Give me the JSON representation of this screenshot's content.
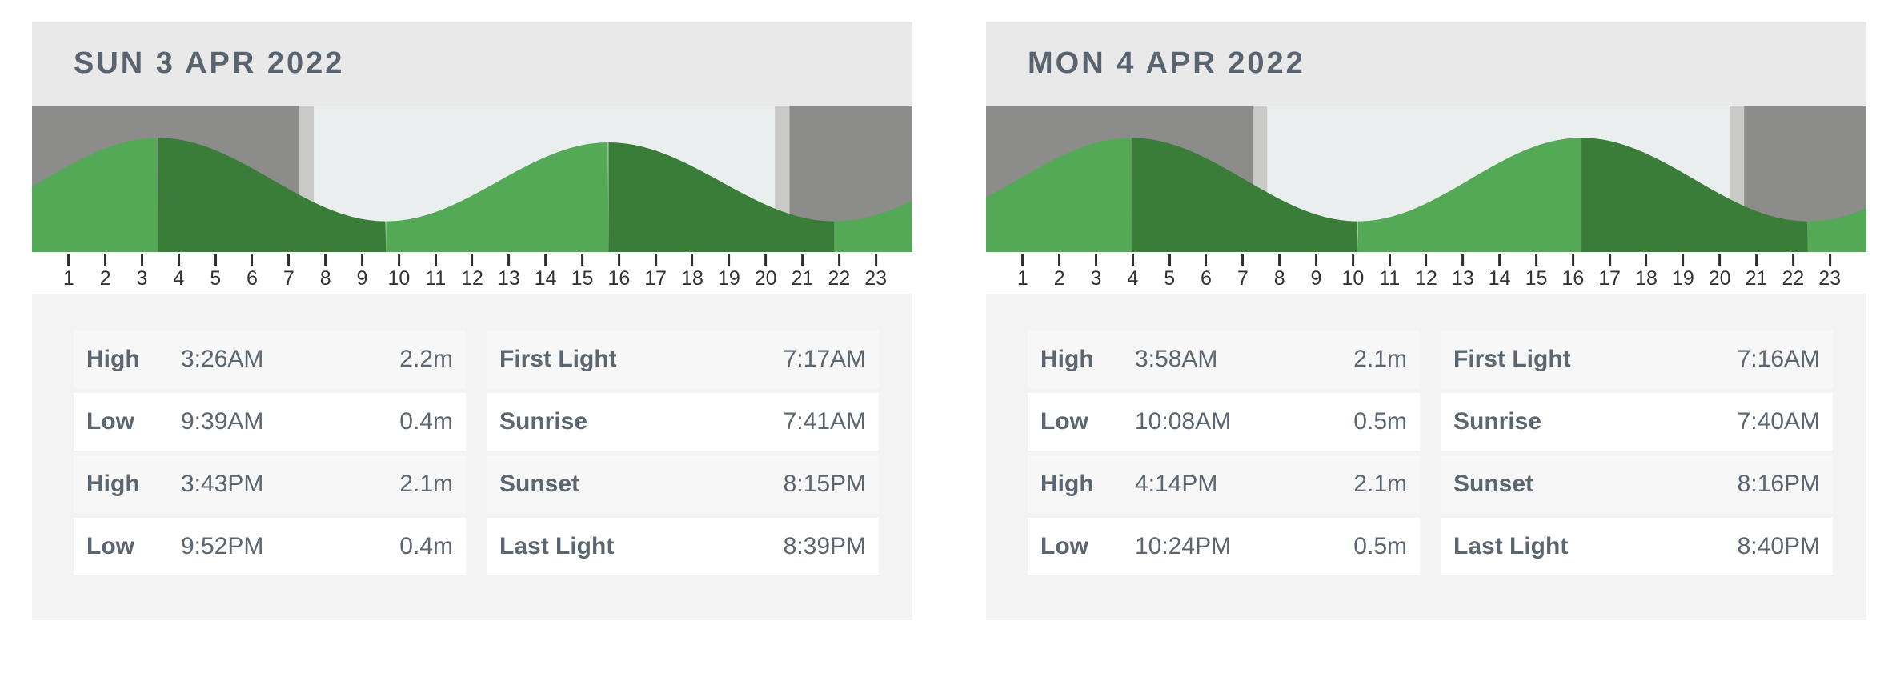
{
  "cards": [
    {
      "title": "SUN 3 APR 2022",
      "chart_data": {
        "type": "area",
        "x_unit": "hour-of-day",
        "x_range": [
          0,
          24
        ],
        "tick_labels": [
          "1",
          "2",
          "3",
          "4",
          "5",
          "6",
          "7",
          "8",
          "9",
          "10",
          "11",
          "12",
          "13",
          "14",
          "15",
          "16",
          "17",
          "18",
          "19",
          "20",
          "21",
          "22",
          "23"
        ],
        "extremes": [
          {
            "type": "High",
            "time": "3:26AM",
            "height_m": 2.2
          },
          {
            "type": "Low",
            "time": "9:39AM",
            "height_m": 0.4
          },
          {
            "type": "High",
            "time": "3:43PM",
            "height_m": 2.1
          },
          {
            "type": "Low",
            "time": "9:52PM",
            "height_m": 0.4
          }
        ],
        "daylight": {
          "first_light": "7:17AM",
          "sunrise": "7:41AM",
          "sunset": "8:15PM",
          "last_light": "8:39PM"
        },
        "legend": "rising tide = light green, falling tide = dark green, night = dark gray, twilight = light gray band, daytime = pale background"
      },
      "tide_table": [
        {
          "label": "High",
          "time": "3:26AM",
          "height": "2.2m"
        },
        {
          "label": "Low",
          "time": "9:39AM",
          "height": "0.4m"
        },
        {
          "label": "High",
          "time": "3:43PM",
          "height": "2.1m"
        },
        {
          "label": "Low",
          "time": "9:52PM",
          "height": "0.4m"
        }
      ],
      "light_table": [
        {
          "label": "First Light",
          "time": "7:17AM"
        },
        {
          "label": "Sunrise",
          "time": "7:41AM"
        },
        {
          "label": "Sunset",
          "time": "8:15PM"
        },
        {
          "label": "Last Light",
          "time": "8:39PM"
        }
      ]
    },
    {
      "title": "MON 4 APR 2022",
      "chart_data": {
        "type": "area",
        "x_unit": "hour-of-day",
        "x_range": [
          0,
          24
        ],
        "tick_labels": [
          "1",
          "2",
          "3",
          "4",
          "5",
          "6",
          "7",
          "8",
          "9",
          "10",
          "11",
          "12",
          "13",
          "14",
          "15",
          "16",
          "17",
          "18",
          "19",
          "20",
          "21",
          "22",
          "23"
        ],
        "extremes": [
          {
            "type": "High",
            "time": "3:58AM",
            "height_m": 2.1
          },
          {
            "type": "Low",
            "time": "10:08AM",
            "height_m": 0.5
          },
          {
            "type": "High",
            "time": "4:14PM",
            "height_m": 2.1
          },
          {
            "type": "Low",
            "time": "10:24PM",
            "height_m": 0.5
          }
        ],
        "daylight": {
          "first_light": "7:16AM",
          "sunrise": "7:40AM",
          "sunset": "8:16PM",
          "last_light": "8:40PM"
        },
        "legend": "rising tide = light green, falling tide = dark green, night = dark gray, twilight = light gray band, daytime = pale background"
      },
      "tide_table": [
        {
          "label": "High",
          "time": "3:58AM",
          "height": "2.1m"
        },
        {
          "label": "Low",
          "time": "10:08AM",
          "height": "0.5m"
        },
        {
          "label": "High",
          "time": "4:14PM",
          "height": "2.1m"
        },
        {
          "label": "Low",
          "time": "10:24PM",
          "height": "0.5m"
        }
      ],
      "light_table": [
        {
          "label": "First Light",
          "time": "7:16AM"
        },
        {
          "label": "Sunrise",
          "time": "7:40AM"
        },
        {
          "label": "Sunset",
          "time": "8:16PM"
        },
        {
          "label": "Last Light",
          "time": "8:40PM"
        }
      ]
    }
  ],
  "colors": {
    "night": "#8c8c8b",
    "twilight": "#c9c9c8",
    "day": "#ebeeee",
    "tide_rising": "#54a957",
    "tide_falling": "#3a7d39",
    "header_bg": "#e9e9e9",
    "header_text": "#5a6470",
    "card_bg": "#f3f3f3",
    "row_alt_bg": "#f7f7f7",
    "row_bg": "#ffffff",
    "table_text": "#5c6670",
    "axis_text": "#333333"
  }
}
